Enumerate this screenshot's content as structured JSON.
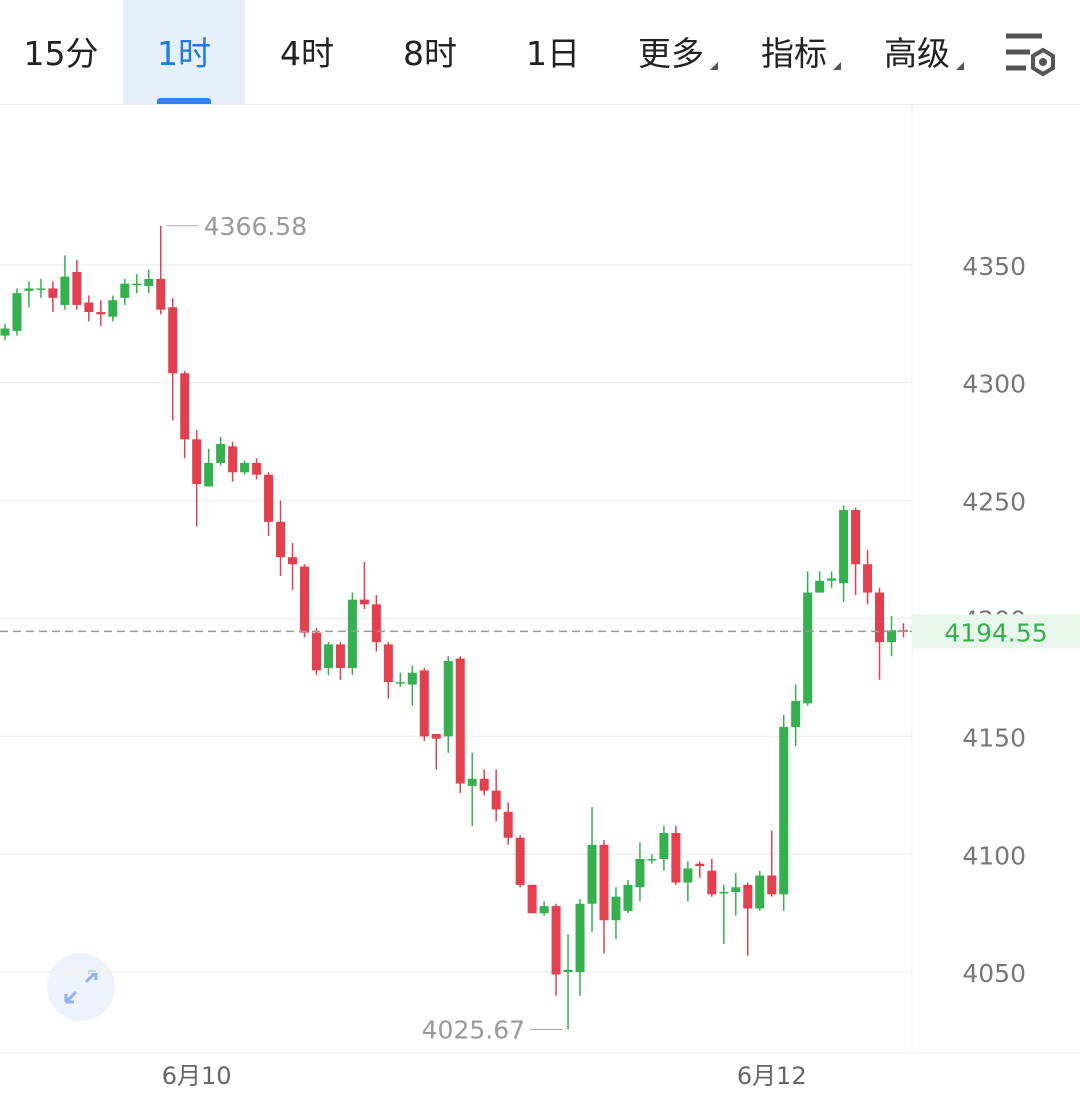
{
  "toolbar": {
    "tabs": [
      "15分",
      "1时",
      "4时",
      "8时",
      "1日"
    ],
    "active": 1,
    "menus": [
      "更多",
      "指标",
      "高级"
    ]
  },
  "chart_data": {
    "type": "candlestick",
    "categories": [
      null,
      null,
      null,
      null,
      null,
      null,
      null,
      null,
      null,
      null,
      null,
      null,
      null,
      null,
      null,
      null,
      "6月10",
      null,
      null,
      null,
      null,
      null,
      null,
      null,
      null,
      null,
      null,
      null,
      null,
      null,
      null,
      null,
      null,
      null,
      null,
      null,
      null,
      null,
      null,
      null,
      null,
      null,
      null,
      null,
      null,
      null,
      null,
      null,
      null,
      null,
      null,
      null,
      null,
      null,
      null,
      null,
      null,
      null,
      null,
      null,
      null,
      null,
      null,
      null,
      "6月12",
      null,
      null,
      null,
      null,
      null,
      null,
      null,
      null,
      null,
      null,
      null
    ],
    "open": [
      4320,
      4322,
      4339,
      4340,
      4340,
      4333,
      4347,
      4334,
      4330,
      4328,
      4336,
      4342,
      4341,
      4344,
      4332,
      4304,
      4276,
      4256,
      4266,
      4273,
      4262,
      4266,
      4261,
      4241,
      4226,
      4222,
      4194,
      4179,
      4189,
      4179,
      4208,
      4206,
      4189,
      4173,
      4172,
      4178,
      4151,
      4150,
      4183,
      4129,
      4132,
      4127,
      4118,
      4107,
      4087,
      4075,
      4078,
      4050,
      4050,
      4079,
      4104,
      4072,
      4076,
      4086,
      4098,
      4098,
      4109,
      4088,
      4096,
      4093,
      4084,
      4084,
      4087,
      4077,
      4091,
      4083,
      4154,
      4164,
      4211,
      4216,
      4215,
      4246,
      4223,
      4211,
      4190,
      4195
    ],
    "high": [
      4325,
      4340,
      4343,
      4344,
      4343,
      4354,
      4352,
      4337,
      4335,
      4337,
      4344,
      4346,
      4348,
      4366.58,
      4336,
      4305,
      4280,
      4272,
      4277,
      4275,
      4267,
      4268,
      4262,
      4250,
      4232,
      4223,
      4196,
      4190,
      4190,
      4211,
      4224,
      4210,
      4190,
      4177,
      4180,
      4179,
      4151,
      4184,
      4184,
      4143,
      4136,
      4136,
      4122,
      4108,
      4087,
      4080,
      4079,
      4066,
      4081,
      4120,
      4106,
      4086,
      4089,
      4105,
      4100,
      4112,
      4112,
      4097,
      4097,
      4098,
      4087,
      4092,
      4088,
      4093,
      4110,
      4159,
      4172,
      4220,
      4220,
      4220,
      4248,
      4247,
      4229,
      4213,
      4201,
      4198
    ],
    "low": [
      4318,
      4320,
      4332,
      4336,
      4330,
      4331,
      4331,
      4326,
      4324,
      4326,
      4333,
      4338,
      4338,
      4329,
      4284,
      4268,
      4239,
      4256,
      4265,
      4258,
      4261,
      4259,
      4235,
      4218,
      4212,
      4192,
      4176,
      4176,
      4174,
      4176,
      4204,
      4186,
      4166,
      4171,
      4163,
      4148,
      4136,
      4143,
      4126,
      4112,
      4125,
      4114,
      4104,
      4086,
      4075,
      4074,
      4040,
      4025.67,
      4040,
      4067,
      4058,
      4064,
      4075,
      4080,
      4096,
      4093,
      4087,
      4080,
      4090,
      4082,
      4062,
      4074,
      4057,
      4076,
      4082,
      4076,
      4146,
      4163,
      4211,
      4213,
      4207,
      4210,
      4206,
      4174,
      4184,
      4192
    ],
    "close": [
      4323,
      4338,
      4340,
      4340,
      4336,
      4345,
      4333,
      4330,
      4329,
      4335,
      4342,
      4342,
      4344,
      4331,
      4304,
      4276,
      4257,
      4266,
      4274,
      4262,
      4266,
      4261,
      4241,
      4226,
      4223,
      4194,
      4178,
      4189,
      4179,
      4208,
      4206,
      4190,
      4173,
      4173,
      4177,
      4150,
      4149,
      4182,
      4130,
      4132,
      4127,
      4119,
      4107,
      4087,
      4075,
      4078,
      4049,
      4051,
      4079,
      4104,
      4072,
      4082,
      4087,
      4098,
      4098,
      4109,
      4088,
      4094,
      4095,
      4083,
      4084,
      4086,
      4077,
      4091,
      4083,
      4154,
      4165,
      4211,
      4216,
      4217,
      4246,
      4223,
      4211,
      4190,
      4195,
      4194.55
    ],
    "up_color": "#34b04e",
    "down_color": "#e2404f",
    "ylim": [
      4015.7,
      4417.8
    ],
    "yticks": [
      4050,
      4100,
      4150,
      4200,
      4250,
      4300,
      4350
    ],
    "grid": true
  }
}
